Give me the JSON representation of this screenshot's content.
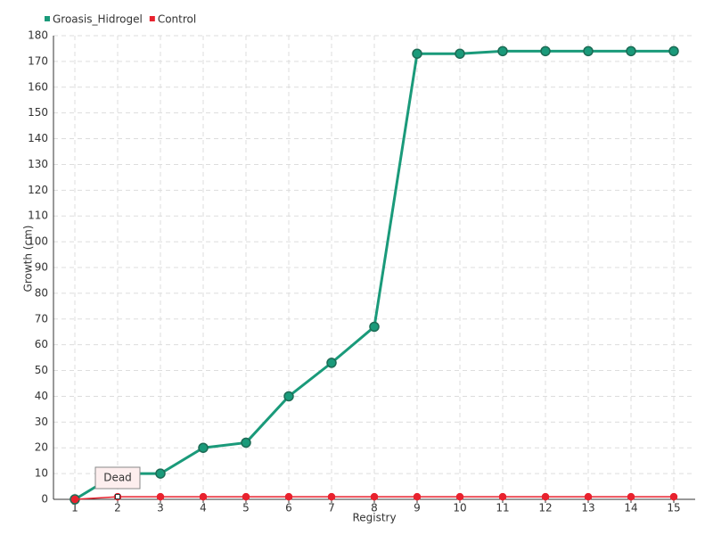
{
  "chart_data": {
    "type": "line",
    "x_label": "Registry",
    "y_label": "Growth (cm)",
    "categories": [
      "1",
      "2",
      "3",
      "4",
      "5",
      "6",
      "7",
      "8",
      "9",
      "10",
      "11",
      "12",
      "13",
      "14",
      "15"
    ],
    "series": [
      {
        "name": "Groasis_Hidrogel",
        "color": "#1a9a7a",
        "values": [
          0,
          10,
          10,
          20,
          22,
          40,
          53,
          67,
          173,
          173,
          174,
          174,
          174,
          174,
          174
        ]
      },
      {
        "name": "Control",
        "color": "#e8222e",
        "values": [
          0,
          1,
          1,
          1,
          1,
          1,
          1,
          1,
          1,
          1,
          1,
          1,
          1,
          1,
          1
        ]
      }
    ],
    "annotations": [
      {
        "text": "Dead",
        "x": "2"
      }
    ],
    "ylim": [
      0,
      180
    ],
    "yticks": [
      0,
      10,
      20,
      30,
      40,
      50,
      60,
      70,
      80,
      90,
      100,
      110,
      120,
      130,
      140,
      150,
      160,
      170,
      180
    ],
    "grid": true,
    "legend": "top-left"
  }
}
